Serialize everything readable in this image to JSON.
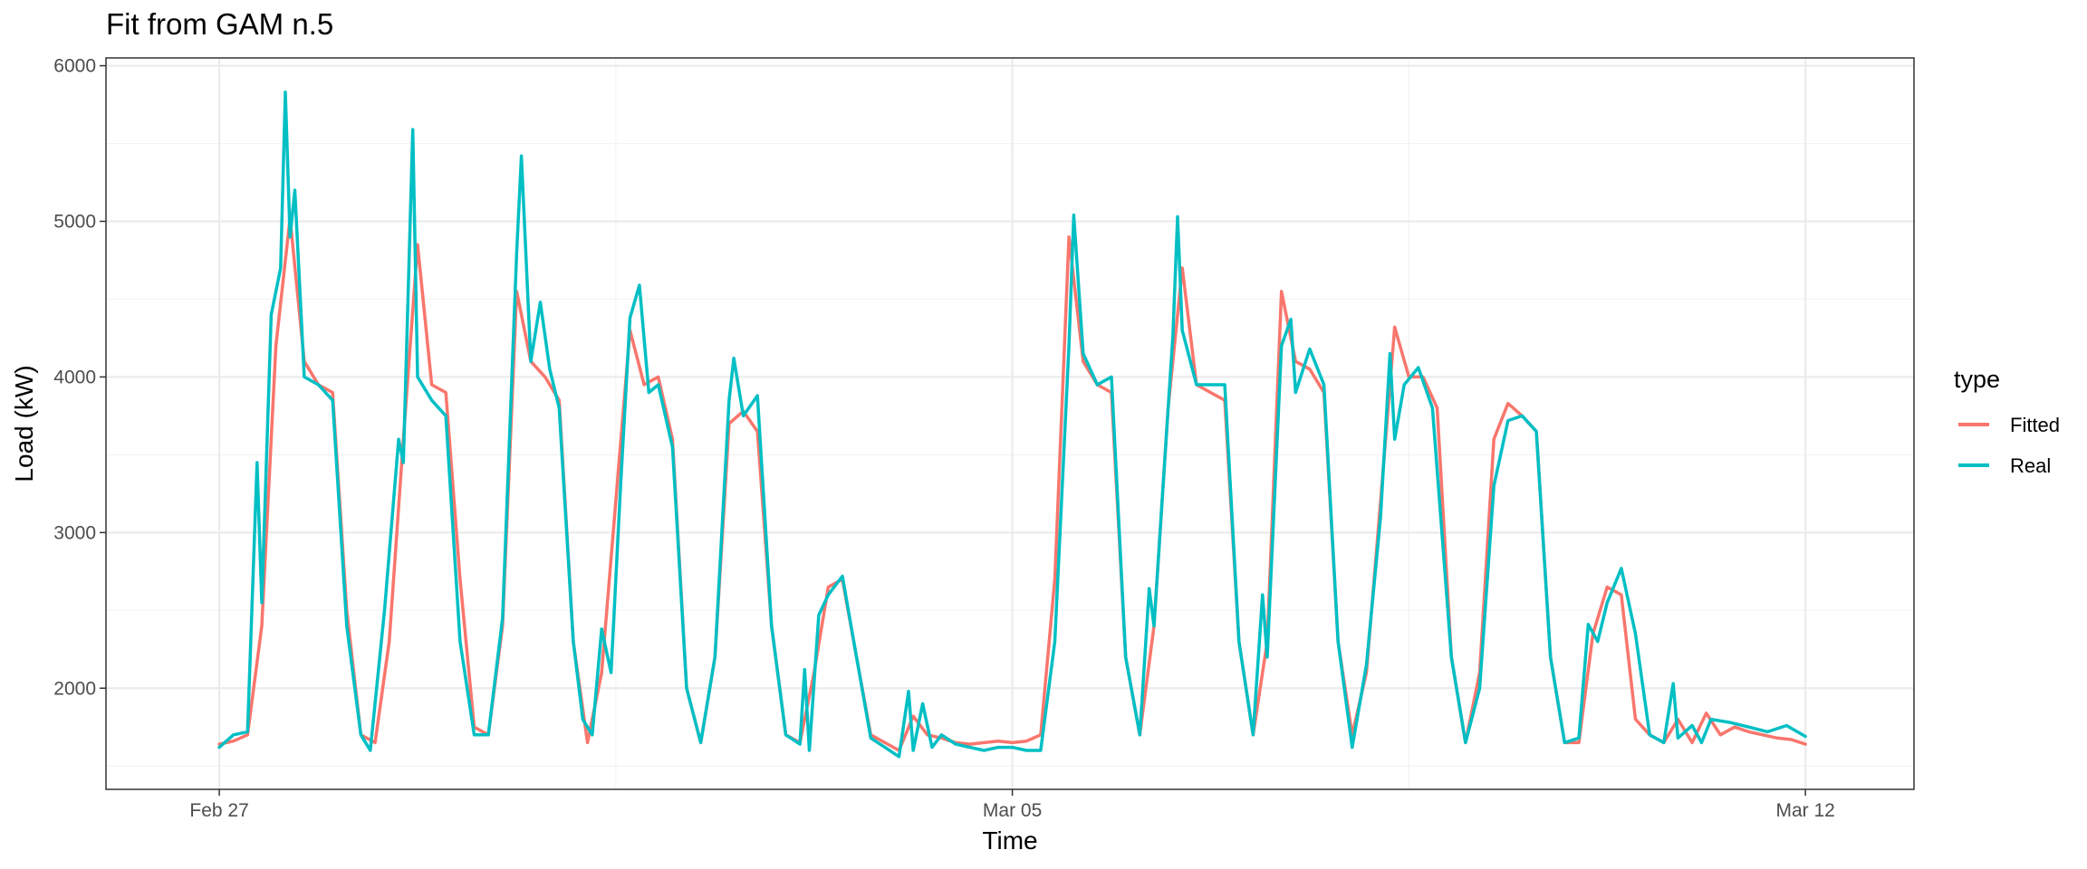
{
  "chart_data": {
    "type": "line",
    "title": "Fit from GAM n.5",
    "xlabel": "Time",
    "ylabel": "Load (kW)",
    "xlim": [
      "2020-02-26T00:00",
      "2020-03-12T23:00"
    ],
    "ylim": [
      1350,
      6050
    ],
    "x_ticks": [
      {
        "label": "Feb 27",
        "value": "2020-02-27T00:00"
      },
      {
        "label": "Mar 05",
        "value": "2020-03-05T00:00"
      },
      {
        "label": "Mar 12",
        "value": "2020-03-12T00:00"
      }
    ],
    "y_ticks": [
      2000,
      3000,
      4000,
      5000,
      6000
    ],
    "grid": true,
    "legend": {
      "title": "type",
      "position": "right"
    },
    "series": [
      {
        "name": "Fitted",
        "color": "#F8766D",
        "points": [
          [
            "2020-02-27T00:00",
            1640
          ],
          [
            "2020-02-27T03:00",
            1660
          ],
          [
            "2020-02-27T06:00",
            1700
          ],
          [
            "2020-02-27T09:00",
            2400
          ],
          [
            "2020-02-27T12:00",
            4200
          ],
          [
            "2020-02-27T15:00",
            5020
          ],
          [
            "2020-02-27T18:00",
            4100
          ],
          [
            "2020-02-27T21:00",
            3950
          ],
          [
            "2020-02-28T00:00",
            3900
          ],
          [
            "2020-02-28T03:00",
            2500
          ],
          [
            "2020-02-28T06:00",
            1700
          ],
          [
            "2020-02-28T09:00",
            1650
          ],
          [
            "2020-02-28T12:00",
            2300
          ],
          [
            "2020-02-28T15:00",
            3600
          ],
          [
            "2020-02-28T18:00",
            4850
          ],
          [
            "2020-02-28T21:00",
            3950
          ],
          [
            "2020-02-29T00:00",
            3900
          ],
          [
            "2020-02-29T03:00",
            2700
          ],
          [
            "2020-02-29T06:00",
            1750
          ],
          [
            "2020-02-29T09:00",
            1700
          ],
          [
            "2020-02-29T12:00",
            2400
          ],
          [
            "2020-02-29T15:00",
            4550
          ],
          [
            "2020-02-29T18:00",
            4100
          ],
          [
            "2020-02-29T21:00",
            4000
          ],
          [
            "2020-03-01T00:00",
            3850
          ],
          [
            "2020-03-01T03:00",
            2300
          ],
          [
            "2020-03-01T06:00",
            1650
          ],
          [
            "2020-03-01T09:00",
            2100
          ],
          [
            "2020-03-01T12:00",
            3200
          ],
          [
            "2020-03-01T15:00",
            4300
          ],
          [
            "2020-03-01T18:00",
            3950
          ],
          [
            "2020-03-01T21:00",
            4000
          ],
          [
            "2020-03-02T00:00",
            3600
          ],
          [
            "2020-03-02T03:00",
            2000
          ],
          [
            "2020-03-02T06:00",
            1650
          ],
          [
            "2020-03-02T09:00",
            2200
          ],
          [
            "2020-03-02T12:00",
            3700
          ],
          [
            "2020-03-02T15:00",
            3780
          ],
          [
            "2020-03-02T18:00",
            3650
          ],
          [
            "2020-03-02T21:00",
            2400
          ],
          [
            "2020-03-03T00:00",
            1700
          ],
          [
            "2020-03-03T03:00",
            1650
          ],
          [
            "2020-03-03T06:00",
            2100
          ],
          [
            "2020-03-03T09:00",
            2650
          ],
          [
            "2020-03-03T12:00",
            2700
          ],
          [
            "2020-03-03T15:00",
            2200
          ],
          [
            "2020-03-03T18:00",
            1700
          ],
          [
            "2020-03-03T21:00",
            1650
          ],
          [
            "2020-03-04T00:00",
            1600
          ],
          [
            "2020-03-04T03:00",
            1820
          ],
          [
            "2020-03-04T06:00",
            1700
          ],
          [
            "2020-03-04T09:00",
            1680
          ],
          [
            "2020-03-04T12:00",
            1650
          ],
          [
            "2020-03-04T15:00",
            1640
          ],
          [
            "2020-03-04T18:00",
            1650
          ],
          [
            "2020-03-04T21:00",
            1660
          ],
          [
            "2020-03-05T00:00",
            1650
          ],
          [
            "2020-03-05T03:00",
            1660
          ],
          [
            "2020-03-05T06:00",
            1700
          ],
          [
            "2020-03-05T09:00",
            2700
          ],
          [
            "2020-03-05T12:00",
            4900
          ],
          [
            "2020-03-05T15:00",
            4100
          ],
          [
            "2020-03-05T18:00",
            3950
          ],
          [
            "2020-03-05T21:00",
            3900
          ],
          [
            "2020-03-06T00:00",
            2200
          ],
          [
            "2020-03-06T03:00",
            1700
          ],
          [
            "2020-03-06T06:00",
            2400
          ],
          [
            "2020-03-06T09:00",
            3800
          ],
          [
            "2020-03-06T12:00",
            4700
          ],
          [
            "2020-03-06T15:00",
            3950
          ],
          [
            "2020-03-06T18:00",
            3900
          ],
          [
            "2020-03-06T21:00",
            3850
          ],
          [
            "2020-03-07T00:00",
            2300
          ],
          [
            "2020-03-07T03:00",
            1700
          ],
          [
            "2020-03-07T06:00",
            2300
          ],
          [
            "2020-03-07T09:00",
            4550
          ],
          [
            "2020-03-07T12:00",
            4100
          ],
          [
            "2020-03-07T15:00",
            4050
          ],
          [
            "2020-03-07T18:00",
            3900
          ],
          [
            "2020-03-07T21:00",
            2300
          ],
          [
            "2020-03-08T00:00",
            1700
          ],
          [
            "2020-03-08T03:00",
            2100
          ],
          [
            "2020-03-08T06:00",
            3200
          ],
          [
            "2020-03-08T09:00",
            4320
          ],
          [
            "2020-03-08T12:00",
            4000
          ],
          [
            "2020-03-08T15:00",
            4000
          ],
          [
            "2020-03-08T18:00",
            3800
          ],
          [
            "2020-03-08T21:00",
            2200
          ],
          [
            "2020-03-09T00:00",
            1650
          ],
          [
            "2020-03-09T03:00",
            2100
          ],
          [
            "2020-03-09T06:00",
            3600
          ],
          [
            "2020-03-09T09:00",
            3830
          ],
          [
            "2020-03-09T12:00",
            3750
          ],
          [
            "2020-03-09T15:00",
            3650
          ],
          [
            "2020-03-09T18:00",
            2200
          ],
          [
            "2020-03-09T21:00",
            1650
          ],
          [
            "2020-03-10T00:00",
            1650
          ],
          [
            "2020-03-10T03:00",
            2350
          ],
          [
            "2020-03-10T06:00",
            2650
          ],
          [
            "2020-03-10T09:00",
            2600
          ],
          [
            "2020-03-10T12:00",
            1800
          ],
          [
            "2020-03-10T15:00",
            1700
          ],
          [
            "2020-03-10T18:00",
            1650
          ],
          [
            "2020-03-10T21:00",
            1800
          ],
          [
            "2020-03-11T00:00",
            1650
          ],
          [
            "2020-03-11T03:00",
            1840
          ],
          [
            "2020-03-11T06:00",
            1700
          ],
          [
            "2020-03-11T09:00",
            1750
          ],
          [
            "2020-03-11T12:00",
            1720
          ],
          [
            "2020-03-11T15:00",
            1700
          ],
          [
            "2020-03-11T18:00",
            1680
          ],
          [
            "2020-03-11T21:00",
            1670
          ],
          [
            "2020-03-12T00:00",
            1640
          ]
        ]
      },
      {
        "name": "Real",
        "color": "#00BFC4",
        "points": [
          [
            "2020-02-27T00:00",
            1620
          ],
          [
            "2020-02-27T03:00",
            1700
          ],
          [
            "2020-02-27T06:00",
            1720
          ],
          [
            "2020-02-27T08:00",
            3450
          ],
          [
            "2020-02-27T09:00",
            2550
          ],
          [
            "2020-02-27T11:00",
            4400
          ],
          [
            "2020-02-27T13:00",
            4700
          ],
          [
            "2020-02-27T14:00",
            5830
          ],
          [
            "2020-02-27T15:00",
            4900
          ],
          [
            "2020-02-27T16:00",
            5200
          ],
          [
            "2020-02-27T18:00",
            4000
          ],
          [
            "2020-02-27T21:00",
            3950
          ],
          [
            "2020-02-28T00:00",
            3850
          ],
          [
            "2020-02-28T03:00",
            2400
          ],
          [
            "2020-02-28T06:00",
            1700
          ],
          [
            "2020-02-28T08:00",
            1600
          ],
          [
            "2020-02-28T11:00",
            2500
          ],
          [
            "2020-02-28T14:00",
            3600
          ],
          [
            "2020-02-28T15:00",
            3450
          ],
          [
            "2020-02-28T17:00",
            5590
          ],
          [
            "2020-02-28T18:00",
            4000
          ],
          [
            "2020-02-28T21:00",
            3850
          ],
          [
            "2020-02-29T00:00",
            3750
          ],
          [
            "2020-02-29T03:00",
            2300
          ],
          [
            "2020-02-29T06:00",
            1700
          ],
          [
            "2020-02-29T09:00",
            1700
          ],
          [
            "2020-02-29T12:00",
            2450
          ],
          [
            "2020-02-29T15:00",
            4800
          ],
          [
            "2020-02-29T16:00",
            5420
          ],
          [
            "2020-02-29T18:00",
            4100
          ],
          [
            "2020-02-29T20:00",
            4480
          ],
          [
            "2020-02-29T22:00",
            4050
          ],
          [
            "2020-03-01T00:00",
            3800
          ],
          [
            "2020-03-01T03:00",
            2300
          ],
          [
            "2020-03-01T05:00",
            1800
          ],
          [
            "2020-03-01T07:00",
            1700
          ],
          [
            "2020-03-01T09:00",
            2380
          ],
          [
            "2020-03-01T11:00",
            2100
          ],
          [
            "2020-03-01T13:00",
            3300
          ],
          [
            "2020-03-01T15:00",
            4380
          ],
          [
            "2020-03-01T17:00",
            4590
          ],
          [
            "2020-03-01T19:00",
            3900
          ],
          [
            "2020-03-01T21:00",
            3950
          ],
          [
            "2020-03-02T00:00",
            3550
          ],
          [
            "2020-03-02T03:00",
            2000
          ],
          [
            "2020-03-02T06:00",
            1650
          ],
          [
            "2020-03-02T09:00",
            2200
          ],
          [
            "2020-03-02T12:00",
            3850
          ],
          [
            "2020-03-02T13:00",
            4120
          ],
          [
            "2020-03-02T15:00",
            3750
          ],
          [
            "2020-03-02T18:00",
            3880
          ],
          [
            "2020-03-02T21:00",
            2400
          ],
          [
            "2020-03-03T00:00",
            1700
          ],
          [
            "2020-03-03T03:00",
            1640
          ],
          [
            "2020-03-03T04:00",
            2120
          ],
          [
            "2020-03-03T05:00",
            1600
          ],
          [
            "2020-03-03T07:00",
            2470
          ],
          [
            "2020-03-03T09:00",
            2600
          ],
          [
            "2020-03-03T12:00",
            2720
          ],
          [
            "2020-03-03T15:00",
            2200
          ],
          [
            "2020-03-03T18:00",
            1680
          ],
          [
            "2020-03-03T21:00",
            1620
          ],
          [
            "2020-03-04T00:00",
            1560
          ],
          [
            "2020-03-04T02:00",
            1980
          ],
          [
            "2020-03-04T03:00",
            1600
          ],
          [
            "2020-03-04T05:00",
            1900
          ],
          [
            "2020-03-04T07:00",
            1620
          ],
          [
            "2020-03-04T09:00",
            1700
          ],
          [
            "2020-03-04T12:00",
            1640
          ],
          [
            "2020-03-04T15:00",
            1620
          ],
          [
            "2020-03-04T18:00",
            1600
          ],
          [
            "2020-03-04T21:00",
            1620
          ],
          [
            "2020-03-05T00:00",
            1620
          ],
          [
            "2020-03-05T03:00",
            1600
          ],
          [
            "2020-03-05T06:00",
            1600
          ],
          [
            "2020-03-05T09:00",
            2300
          ],
          [
            "2020-03-05T12:00",
            4200
          ],
          [
            "2020-03-05T13:00",
            5040
          ],
          [
            "2020-03-05T15:00",
            4150
          ],
          [
            "2020-03-05T18:00",
            3950
          ],
          [
            "2020-03-05T21:00",
            4000
          ],
          [
            "2020-03-06T00:00",
            2200
          ],
          [
            "2020-03-06T03:00",
            1700
          ],
          [
            "2020-03-06T05:00",
            2640
          ],
          [
            "2020-03-06T06:00",
            2400
          ],
          [
            "2020-03-06T09:00",
            3800
          ],
          [
            "2020-03-06T10:00",
            4260
          ],
          [
            "2020-03-06T11:00",
            5030
          ],
          [
            "2020-03-06T12:00",
            4300
          ],
          [
            "2020-03-06T15:00",
            3950
          ],
          [
            "2020-03-06T18:00",
            3950
          ],
          [
            "2020-03-06T21:00",
            3950
          ],
          [
            "2020-03-07T00:00",
            2300
          ],
          [
            "2020-03-07T03:00",
            1700
          ],
          [
            "2020-03-07T05:00",
            2600
          ],
          [
            "2020-03-07T06:00",
            2200
          ],
          [
            "2020-03-07T09:00",
            4200
          ],
          [
            "2020-03-07T11:00",
            4370
          ],
          [
            "2020-03-07T12:00",
            3900
          ],
          [
            "2020-03-07T15:00",
            4180
          ],
          [
            "2020-03-07T18:00",
            3950
          ],
          [
            "2020-03-07T21:00",
            2300
          ],
          [
            "2020-03-08T00:00",
            1620
          ],
          [
            "2020-03-08T03:00",
            2150
          ],
          [
            "2020-03-08T06:00",
            3100
          ],
          [
            "2020-03-08T08:00",
            4150
          ],
          [
            "2020-03-08T09:00",
            3600
          ],
          [
            "2020-03-08T11:00",
            3950
          ],
          [
            "2020-03-08T14:00",
            4060
          ],
          [
            "2020-03-08T17:00",
            3800
          ],
          [
            "2020-03-08T21:00",
            2200
          ],
          [
            "2020-03-09T00:00",
            1650
          ],
          [
            "2020-03-09T03:00",
            2000
          ],
          [
            "2020-03-09T06:00",
            3300
          ],
          [
            "2020-03-09T09:00",
            3720
          ],
          [
            "2020-03-09T12:00",
            3750
          ],
          [
            "2020-03-09T15:00",
            3650
          ],
          [
            "2020-03-09T18:00",
            2200
          ],
          [
            "2020-03-09T21:00",
            1650
          ],
          [
            "2020-03-10T00:00",
            1680
          ],
          [
            "2020-03-10T02:00",
            2410
          ],
          [
            "2020-03-10T04:00",
            2300
          ],
          [
            "2020-03-10T06:00",
            2550
          ],
          [
            "2020-03-10T09:00",
            2770
          ],
          [
            "2020-03-10T12:00",
            2350
          ],
          [
            "2020-03-10T15:00",
            1700
          ],
          [
            "2020-03-10T18:00",
            1650
          ],
          [
            "2020-03-10T20:00",
            2030
          ],
          [
            "2020-03-10T21:00",
            1680
          ],
          [
            "2020-03-11T00:00",
            1760
          ],
          [
            "2020-03-11T02:00",
            1650
          ],
          [
            "2020-03-11T04:00",
            1800
          ],
          [
            "2020-03-11T08:00",
            1780
          ],
          [
            "2020-03-11T12:00",
            1750
          ],
          [
            "2020-03-11T16:00",
            1720
          ],
          [
            "2020-03-11T20:00",
            1760
          ],
          [
            "2020-03-12T00:00",
            1690
          ]
        ]
      }
    ]
  }
}
